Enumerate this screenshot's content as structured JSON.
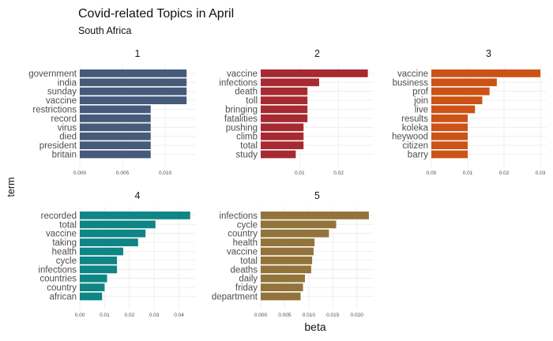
{
  "chart_data": {
    "type": "bar",
    "orientation": "horizontal",
    "title": "Covid-related Topics in April",
    "subtitle": "South Africa",
    "xlabel": "beta",
    "ylabel": "term",
    "grid": true,
    "facets": [
      {
        "name": "1",
        "color": "#465a7a",
        "xlim": [
          0,
          0.0135
        ],
        "ticks": [
          0.0,
          0.005,
          0.01
        ],
        "tick_labels": [
          "0.000",
          "0.005",
          "0.010"
        ],
        "categories": [
          "government",
          "india",
          "sunday",
          "vaccine",
          "restrictions",
          "record",
          "virus",
          "died",
          "president",
          "britain"
        ],
        "values": [
          0.0125,
          0.0125,
          0.0125,
          0.0125,
          0.0083,
          0.0083,
          0.0083,
          0.0083,
          0.0083,
          0.0083
        ]
      },
      {
        "name": "2",
        "color": "#a62a32",
        "xlim": [
          0,
          0.029
        ],
        "ticks": [
          0.01,
          0.02
        ],
        "tick_labels": [
          "0.01",
          "0.02"
        ],
        "categories": [
          "vaccine",
          "infections",
          "death",
          "toll",
          "bringing",
          "fatalities",
          "pushing",
          "climb",
          "total",
          "study"
        ],
        "values": [
          0.0275,
          0.015,
          0.012,
          0.012,
          0.012,
          0.012,
          0.011,
          0.011,
          0.011,
          0.009
        ]
      },
      {
        "name": "3",
        "color": "#cc5317",
        "xlim": [
          0,
          0.0315
        ],
        "ticks": [
          0.0,
          0.01,
          0.02,
          0.03
        ],
        "tick_labels": [
          "0.00",
          "0.01",
          "0.02",
          "0.03"
        ],
        "categories": [
          "vaccine",
          "business",
          "prof",
          "join",
          "live",
          "results",
          "koleka",
          "heywood",
          "citizen",
          "barry"
        ],
        "values": [
          0.03,
          0.018,
          0.016,
          0.014,
          0.012,
          0.01,
          0.01,
          0.01,
          0.01,
          0.01
        ]
      },
      {
        "name": "4",
        "color": "#0f8585",
        "xlim": [
          0,
          0.0465
        ],
        "ticks": [
          0.0,
          0.01,
          0.02,
          0.03,
          0.04
        ],
        "tick_labels": [
          "0.00",
          "0.01",
          "0.02",
          "0.03",
          "0.04"
        ],
        "categories": [
          "recorded",
          "total",
          "vaccine",
          "taking",
          "health",
          "cycle",
          "infections",
          "countries",
          "country",
          "african"
        ],
        "values": [
          0.0445,
          0.0305,
          0.0265,
          0.0235,
          0.0175,
          0.015,
          0.015,
          0.011,
          0.01,
          0.009
        ]
      },
      {
        "name": "5",
        "color": "#92733a",
        "xlim": [
          0,
          0.0235
        ],
        "ticks": [
          0.0,
          0.005,
          0.01,
          0.015,
          0.02
        ],
        "tick_labels": [
          "0.000",
          "0.005",
          "0.010",
          "0.015",
          "0.020"
        ],
        "categories": [
          "infections",
          "cycle",
          "country",
          "health",
          "vaccine",
          "total",
          "deaths",
          "daily",
          "friday",
          "department"
        ],
        "values": [
          0.0225,
          0.0157,
          0.0142,
          0.0112,
          0.011,
          0.0107,
          0.0105,
          0.0092,
          0.0088,
          0.0083
        ]
      }
    ]
  }
}
